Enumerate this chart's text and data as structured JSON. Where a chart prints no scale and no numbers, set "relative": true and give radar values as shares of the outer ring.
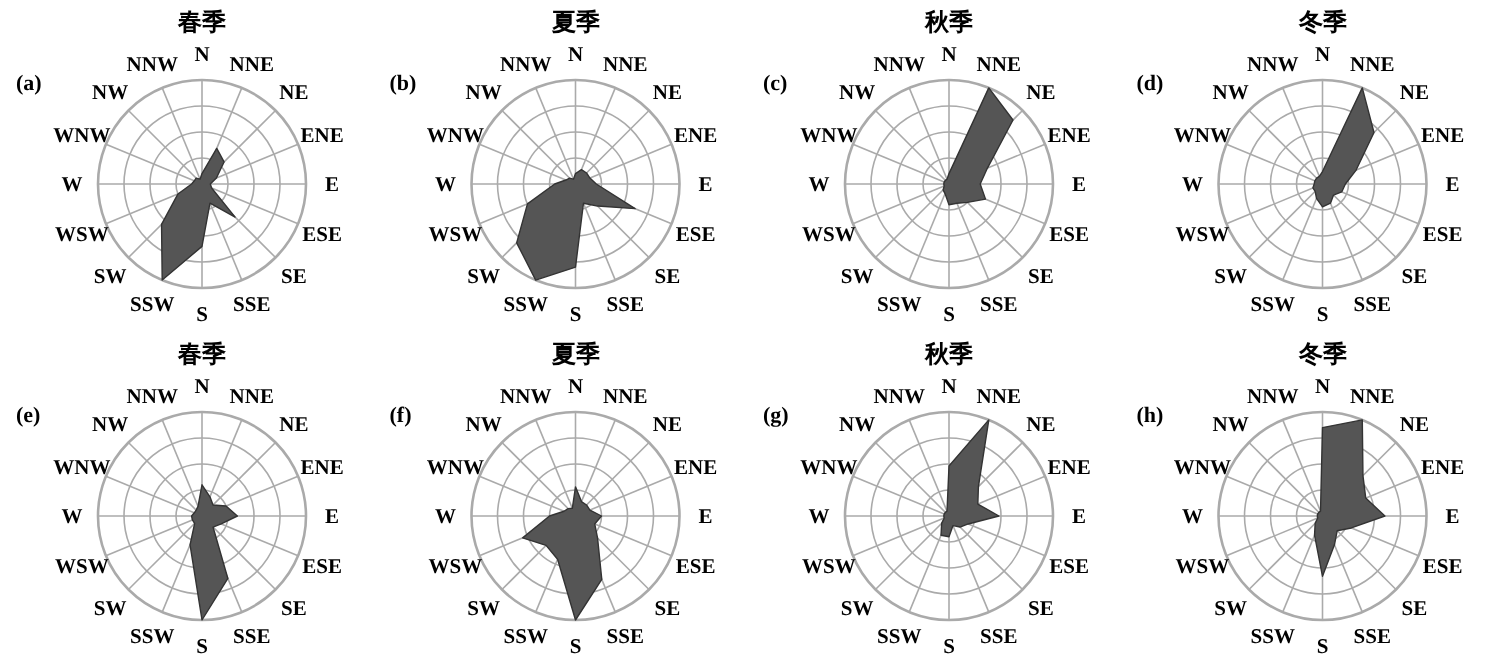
{
  "chart_data": [
    {
      "type": "radar",
      "title": "春季",
      "annotations": [
        "(a)"
      ],
      "relative": true,
      "grid": true,
      "categories": [
        "N",
        "NNE",
        "NE",
        "ENE",
        "E",
        "ESE",
        "SE",
        "SSE",
        "S",
        "SSW",
        "SW",
        "WSW",
        "W",
        "WNW",
        "NW",
        "NNW"
      ],
      "series": [
        {
          "color": "#555555",
          "values": [
            0.1,
            0.37,
            0.3,
            0.15,
            0.08,
            0.1,
            0.45,
            0.2,
            0.6,
            1.0,
            0.55,
            0.25,
            0.1,
            0.08,
            0.08,
            0.05
          ]
        }
      ]
    },
    {
      "type": "radar",
      "title": "夏季",
      "annotations": [
        "(b)"
      ],
      "relative": true,
      "grid": true,
      "categories": [
        "N",
        "NNE",
        "NE",
        "ENE",
        "E",
        "ESE",
        "SE",
        "SSE",
        "S",
        "SSW",
        "SW",
        "WSW",
        "W",
        "WNW",
        "NW",
        "NNW"
      ],
      "series": [
        {
          "color": "#555555",
          "values": [
            0.1,
            0.15,
            0.15,
            0.15,
            0.2,
            0.62,
            0.3,
            0.2,
            0.8,
            1.0,
            0.8,
            0.5,
            0.2,
            0.1,
            0.08,
            0.05
          ]
        }
      ]
    },
    {
      "type": "radar",
      "title": "秋季",
      "annotations": [
        "(c)"
      ],
      "relative": true,
      "grid": true,
      "categories": [
        "N",
        "NNE",
        "NE",
        "ENE",
        "E",
        "ESE",
        "SE",
        "SSE",
        "S",
        "SSW",
        "SW",
        "WSW",
        "W",
        "WNW",
        "NW",
        "NNW"
      ],
      "series": [
        {
          "color": "#555555",
          "values": [
            0.1,
            1.0,
            0.87,
            0.4,
            0.3,
            0.38,
            0.25,
            0.2,
            0.2,
            0.1,
            0.08,
            0.05,
            0.05,
            0.05,
            0.05,
            0.05
          ]
        }
      ]
    },
    {
      "type": "radar",
      "title": "冬季",
      "annotations": [
        "(d)"
      ],
      "relative": true,
      "grid": true,
      "categories": [
        "N",
        "NNE",
        "NE",
        "ENE",
        "E",
        "ESE",
        "SE",
        "SSE",
        "S",
        "SSW",
        "SW",
        "WSW",
        "W",
        "WNW",
        "NW",
        "NNW"
      ],
      "series": [
        {
          "color": "#555555",
          "values": [
            0.12,
            1.0,
            0.7,
            0.35,
            0.22,
            0.2,
            0.15,
            0.2,
            0.22,
            0.15,
            0.1,
            0.1,
            0.08,
            0.08,
            0.08,
            0.08
          ]
        }
      ]
    },
    {
      "type": "radar",
      "title": "春季",
      "annotations": [
        "(e)"
      ],
      "relative": true,
      "grid": true,
      "categories": [
        "N",
        "NNE",
        "NE",
        "ENE",
        "E",
        "ESE",
        "SE",
        "SSE",
        "S",
        "SSW",
        "SW",
        "WSW",
        "W",
        "WNW",
        "NW",
        "NNW"
      ],
      "series": [
        {
          "color": "#555555",
          "values": [
            0.3,
            0.2,
            0.15,
            0.25,
            0.34,
            0.2,
            0.15,
            0.65,
            1.0,
            0.3,
            0.1,
            0.1,
            0.1,
            0.08,
            0.08,
            0.1
          ]
        }
      ]
    },
    {
      "type": "radar",
      "title": "夏季",
      "annotations": [
        "(f)"
      ],
      "relative": true,
      "grid": true,
      "categories": [
        "N",
        "NNE",
        "NE",
        "ENE",
        "E",
        "ESE",
        "SE",
        "SSE",
        "S",
        "SSW",
        "SW",
        "WSW",
        "W",
        "WNW",
        "NW",
        "NNW"
      ],
      "series": [
        {
          "color": "#555555",
          "values": [
            0.28,
            0.15,
            0.15,
            0.15,
            0.25,
            0.2,
            0.3,
            0.66,
            1.0,
            0.45,
            0.4,
            0.55,
            0.25,
            0.12,
            0.1,
            0.08
          ]
        }
      ]
    },
    {
      "type": "radar",
      "title": "秋季",
      "annotations": [
        "(g)"
      ],
      "relative": true,
      "grid": true,
      "categories": [
        "N",
        "NNE",
        "NE",
        "ENE",
        "E",
        "ESE",
        "SE",
        "SSE",
        "S",
        "SSW",
        "SW",
        "WSW",
        "W",
        "WNW",
        "NW",
        "NNW"
      ],
      "series": [
        {
          "color": "#555555",
          "values": [
            0.48,
            1.0,
            0.4,
            0.3,
            0.48,
            0.2,
            0.15,
            0.1,
            0.2,
            0.2,
            0.1,
            0.05,
            0.05,
            0.05,
            0.05,
            0.05
          ]
        }
      ]
    },
    {
      "type": "radar",
      "title": "冬季",
      "annotations": [
        "(h)"
      ],
      "relative": true,
      "grid": true,
      "categories": [
        "N",
        "NNE",
        "NE",
        "ENE",
        "E",
        "ESE",
        "SE",
        "SSE",
        "S",
        "SSW",
        "SW",
        "WSW",
        "W",
        "WNW",
        "NW",
        "NNW"
      ],
      "series": [
        {
          "color": "#555555",
          "values": [
            0.85,
            1.0,
            0.55,
            0.45,
            0.6,
            0.3,
            0.2,
            0.3,
            0.58,
            0.2,
            0.1,
            0.05,
            0.05,
            0.05,
            0.05,
            0.05
          ]
        }
      ]
    }
  ]
}
